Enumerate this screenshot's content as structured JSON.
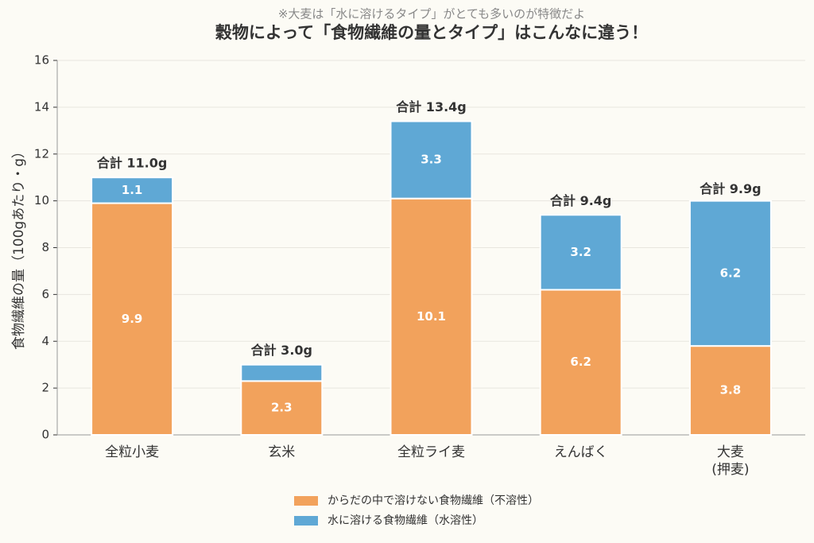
{
  "chart_data": {
    "type": "stacked_bar",
    "title": "穀物によって「食物繊維の量とタイプ」はこんなに違う！",
    "subtitle": "※大麦は「水に溶けるタイプ」がとても多いのが特徴だよ",
    "y_label": "食物繊維の量（100gあたり・g）",
    "categories": [
      "全粒小麦",
      "玄米",
      "全粒ライ麦",
      "えんばく",
      "大麦\n(押麦)"
    ],
    "series": [
      {
        "name": "からだの中で溶けない食物繊維（不溶性）",
        "color": "#f2a25c",
        "values": [
          9.9,
          2.3,
          10.1,
          6.2,
          3.8
        ]
      },
      {
        "name": "水に溶ける食物繊維（水溶性）",
        "color": "#5fa8d5",
        "values": [
          1.1,
          0.7,
          3.3,
          3.2,
          6.2
        ],
        "value_labels": [
          "1.1",
          null,
          "3.3",
          "3.2",
          "6.2"
        ]
      }
    ],
    "totals": [
      11.0,
      3.0,
      13.4,
      9.4,
      9.9
    ],
    "total_labels": [
      "合計 11.0g",
      "合計 3.0g",
      "合計 13.4g",
      "合計 9.4g",
      "合計 9.9g"
    ],
    "ylim": [
      0,
      16
    ],
    "yticks": [
      0,
      2,
      4,
      6,
      8,
      10,
      12,
      14,
      16
    ],
    "grid": true,
    "legend": "bottom"
  }
}
